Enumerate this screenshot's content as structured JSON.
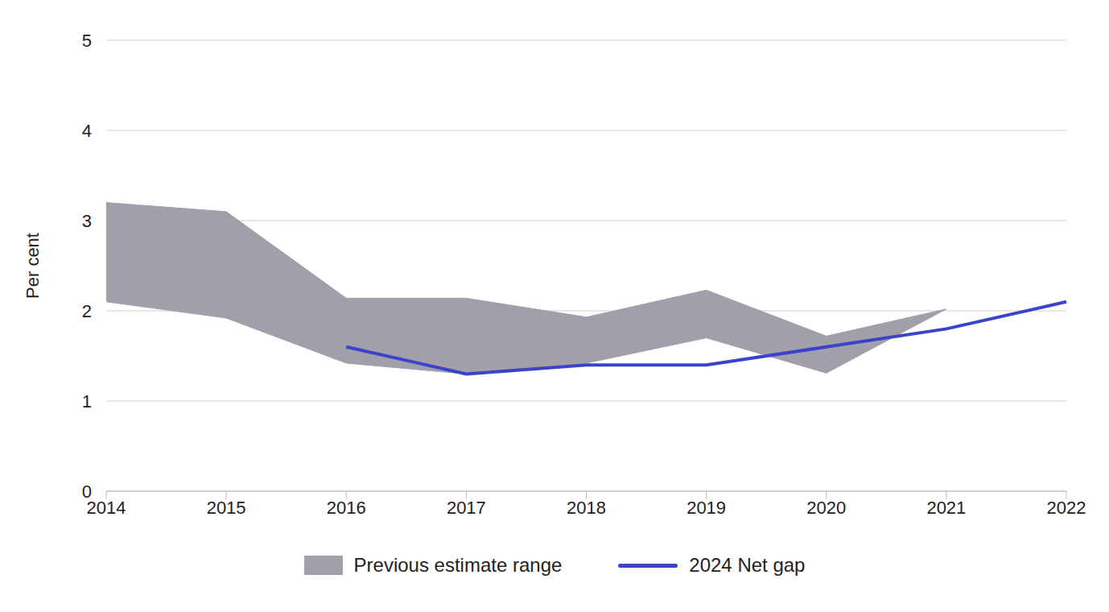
{
  "chart_data": {
    "type": "line",
    "y_label": "Per cent",
    "categories": [
      "2014",
      "2015",
      "2016",
      "2017",
      "2018",
      "2019",
      "2020",
      "2021",
      "2022"
    ],
    "series": [
      {
        "name": "Previous estimate range",
        "type": "range",
        "color": "#a29fab",
        "values": [
          [
            2.1,
            3.2
          ],
          [
            1.92,
            3.1
          ],
          [
            1.42,
            2.14
          ],
          [
            1.3,
            2.14
          ],
          [
            1.42,
            1.93
          ],
          [
            1.7,
            2.23
          ],
          [
            1.31,
            1.72
          ],
          [
            2.02,
            2.02
          ],
          null
        ]
      },
      {
        "name": "2024 Net gap",
        "type": "line",
        "color": "#3a43c9",
        "values": [
          null,
          null,
          1.6,
          1.3,
          1.4,
          1.4,
          1.6,
          1.8,
          2.1
        ]
      }
    ],
    "ylim": [
      0,
      5
    ],
    "yticks": [
      0,
      1,
      2,
      3,
      4,
      5
    ],
    "grid": true,
    "legend": "bottom"
  }
}
